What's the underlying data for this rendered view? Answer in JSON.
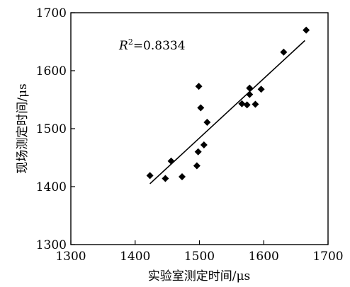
{
  "chart_data": {
    "type": "scatter",
    "xlabel": "实验室测定时间/μs",
    "ylabel": "现场测定时间/μs",
    "xlim": [
      1300,
      1700
    ],
    "ylim": [
      1300,
      1700
    ],
    "xticks": [
      1300,
      1400,
      1500,
      1600,
      1700
    ],
    "yticks": [
      1300,
      1400,
      1500,
      1600,
      1700
    ],
    "grid": false,
    "annotation": {
      "prefix": "R",
      "superscript": "2",
      "value": "=0.8334"
    },
    "points": [
      {
        "x": 1423,
        "y": 1419
      },
      {
        "x": 1447,
        "y": 1414
      },
      {
        "x": 1456,
        "y": 1444
      },
      {
        "x": 1473,
        "y": 1417
      },
      {
        "x": 1496,
        "y": 1436
      },
      {
        "x": 1498,
        "y": 1460
      },
      {
        "x": 1499,
        "y": 1573
      },
      {
        "x": 1502,
        "y": 1536
      },
      {
        "x": 1507,
        "y": 1472
      },
      {
        "x": 1512,
        "y": 1511
      },
      {
        "x": 1566,
        "y": 1543
      },
      {
        "x": 1574,
        "y": 1541
      },
      {
        "x": 1578,
        "y": 1570
      },
      {
        "x": 1578,
        "y": 1559
      },
      {
        "x": 1587,
        "y": 1542
      },
      {
        "x": 1596,
        "y": 1568
      },
      {
        "x": 1631,
        "y": 1632
      },
      {
        "x": 1666,
        "y": 1670
      }
    ],
    "fit_line": {
      "x": [
        1423,
        1664
      ],
      "y": [
        1405,
        1652
      ]
    }
  }
}
